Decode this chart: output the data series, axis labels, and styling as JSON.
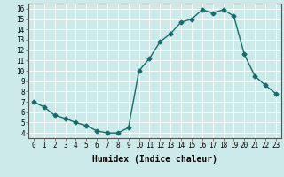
{
  "x": [
    0,
    1,
    2,
    3,
    4,
    5,
    6,
    7,
    8,
    9,
    10,
    11,
    12,
    13,
    14,
    15,
    16,
    17,
    18,
    19,
    20,
    21,
    22,
    23
  ],
  "y": [
    7.0,
    6.5,
    5.7,
    5.4,
    5.0,
    4.7,
    4.2,
    4.0,
    4.0,
    4.5,
    10.0,
    11.2,
    12.8,
    13.6,
    14.7,
    15.0,
    15.9,
    15.6,
    15.9,
    15.3,
    11.6,
    9.5,
    8.6,
    7.8
  ],
  "line_color": "#1a6b6b",
  "marker": "D",
  "markersize": 2.5,
  "bg_color": "#cceaea",
  "grid_color": "#ffffff",
  "xlabel": "Humidex (Indice chaleur)",
  "xlim": [
    -0.5,
    23.5
  ],
  "ylim": [
    3.5,
    16.5
  ],
  "yticks": [
    4,
    5,
    6,
    7,
    8,
    9,
    10,
    11,
    12,
    13,
    14,
    15,
    16
  ],
  "xticks": [
    0,
    1,
    2,
    3,
    4,
    5,
    6,
    7,
    8,
    9,
    10,
    11,
    12,
    13,
    14,
    15,
    16,
    17,
    18,
    19,
    20,
    21,
    22,
    23
  ],
  "tick_fontsize": 5.5,
  "label_fontsize": 7,
  "linewidth": 1.0
}
